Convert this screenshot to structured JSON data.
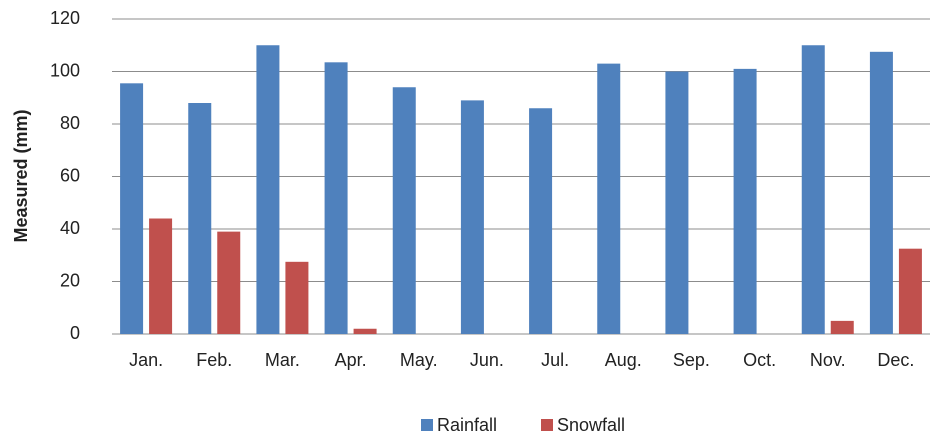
{
  "chart_data": {
    "type": "bar",
    "y_label": "Measured (mm)",
    "categories": [
      "Jan.",
      "Feb.",
      "Mar.",
      "Apr.",
      "May.",
      "Jun.",
      "Jul.",
      "Aug.",
      "Sep.",
      "Oct.",
      "Nov.",
      "Dec."
    ],
    "series": [
      {
        "name": "Rainfall",
        "color": "#4f81bd",
        "values": [
          95.5,
          88,
          110,
          103.5,
          94,
          89,
          86,
          103,
          100,
          101,
          110,
          107.5
        ]
      },
      {
        "name": "Snowfall",
        "color": "#c0504d",
        "values": [
          44,
          39,
          27.5,
          2,
          0,
          0,
          0,
          0,
          0,
          0,
          5,
          32.5
        ]
      }
    ],
    "ylim": [
      0,
      120
    ],
    "yticks": [
      0,
      20,
      40,
      60,
      80,
      100,
      120
    ],
    "grid": true,
    "legend": "bottom"
  }
}
